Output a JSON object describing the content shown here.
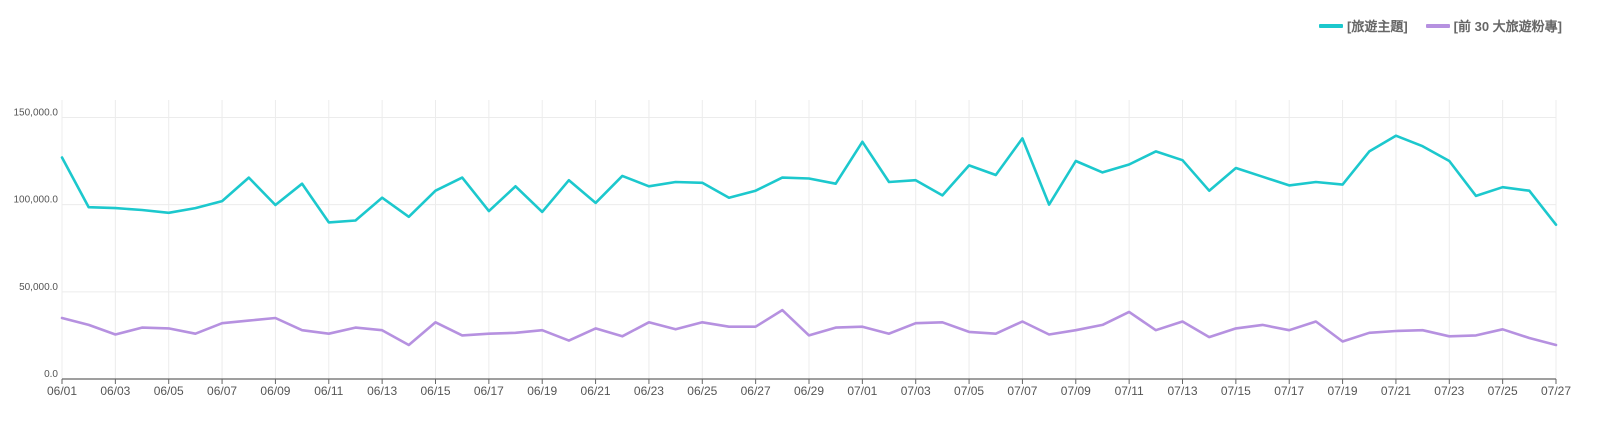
{
  "colors": {
    "series1": "#1cc8cd",
    "series2": "#b691e0",
    "grid": "#ececec",
    "axis": "#666666",
    "text": "#555555"
  },
  "chart_data": {
    "type": "line",
    "title": "",
    "xlabel": "",
    "ylabel": "",
    "ylim": [
      0,
      160000
    ],
    "grid": true,
    "legend_position": "top-right",
    "x": [
      "06/01",
      "06/02",
      "06/03",
      "06/04",
      "06/05",
      "06/06",
      "06/07",
      "06/08",
      "06/09",
      "06/10",
      "06/11",
      "06/12",
      "06/13",
      "06/14",
      "06/15",
      "06/16",
      "06/17",
      "06/18",
      "06/19",
      "06/20",
      "06/21",
      "06/22",
      "06/23",
      "06/24",
      "06/25",
      "06/26",
      "06/27",
      "06/28",
      "06/29",
      "06/30",
      "07/01",
      "07/02",
      "07/03",
      "07/04",
      "07/05",
      "07/06",
      "07/07",
      "07/08",
      "07/09",
      "07/10",
      "07/11",
      "07/12",
      "07/13",
      "07/14",
      "07/15",
      "07/16",
      "07/17",
      "07/18",
      "07/19",
      "07/20",
      "07/21",
      "07/22",
      "07/23",
      "07/24",
      "07/25",
      "07/26",
      "07/27"
    ],
    "x_tick_labels": [
      "06/01",
      "06/03",
      "06/05",
      "06/07",
      "06/09",
      "06/11",
      "06/13",
      "06/15",
      "06/17",
      "06/19",
      "06/21",
      "06/23",
      "06/25",
      "06/27",
      "06/29",
      "07/01",
      "07/03",
      "07/05",
      "07/07",
      "07/09",
      "07/11",
      "07/13",
      "07/15",
      "07/17",
      "07/19",
      "07/21",
      "07/23",
      "07/25",
      "07/27"
    ],
    "y_ticks": [
      {
        "value": 0,
        "label": "0.0"
      },
      {
        "value": 50000,
        "label": "50,000.0"
      },
      {
        "value": 100000,
        "label": "100,000.0"
      },
      {
        "value": 150000,
        "label": "150,000.0"
      }
    ],
    "series": [
      {
        "name": "[旅遊主題]",
        "color": "#1cc8cd",
        "values": [
          127000,
          98500,
          98000,
          96900,
          95300,
          98000,
          102000,
          115500,
          99800,
          112000,
          89800,
          90900,
          104000,
          93000,
          108000,
          115500,
          96300,
          110500,
          95800,
          114000,
          101000,
          116500,
          110500,
          113000,
          112500,
          104000,
          108000,
          115500,
          115000,
          112000,
          136000,
          113000,
          114000,
          105300,
          122500,
          117000,
          138000,
          100000,
          125000,
          118500,
          123000,
          130500,
          125500,
          108000,
          121000,
          116000,
          111000,
          113000,
          111500,
          130500,
          139500,
          133500,
          125000,
          105000,
          110000,
          108000,
          88500
        ]
      },
      {
        "name": "[前 30 大旅遊粉專]",
        "color": "#b691e0",
        "values": [
          35000,
          31000,
          25500,
          29500,
          29000,
          26000,
          32000,
          33500,
          35000,
          28000,
          26000,
          29500,
          28000,
          19500,
          32500,
          25000,
          26000,
          26500,
          28000,
          22000,
          29000,
          24500,
          32500,
          28500,
          32500,
          30000,
          30000,
          39500,
          25000,
          29500,
          30000,
          26000,
          32000,
          32500,
          27000,
          26000,
          33000,
          25500,
          28000,
          31000,
          38500,
          28000,
          33000,
          24000,
          29000,
          31000,
          28000,
          33000,
          21500,
          26500,
          27500,
          28000,
          24500,
          25000,
          28500,
          23500,
          19500
        ]
      }
    ]
  }
}
